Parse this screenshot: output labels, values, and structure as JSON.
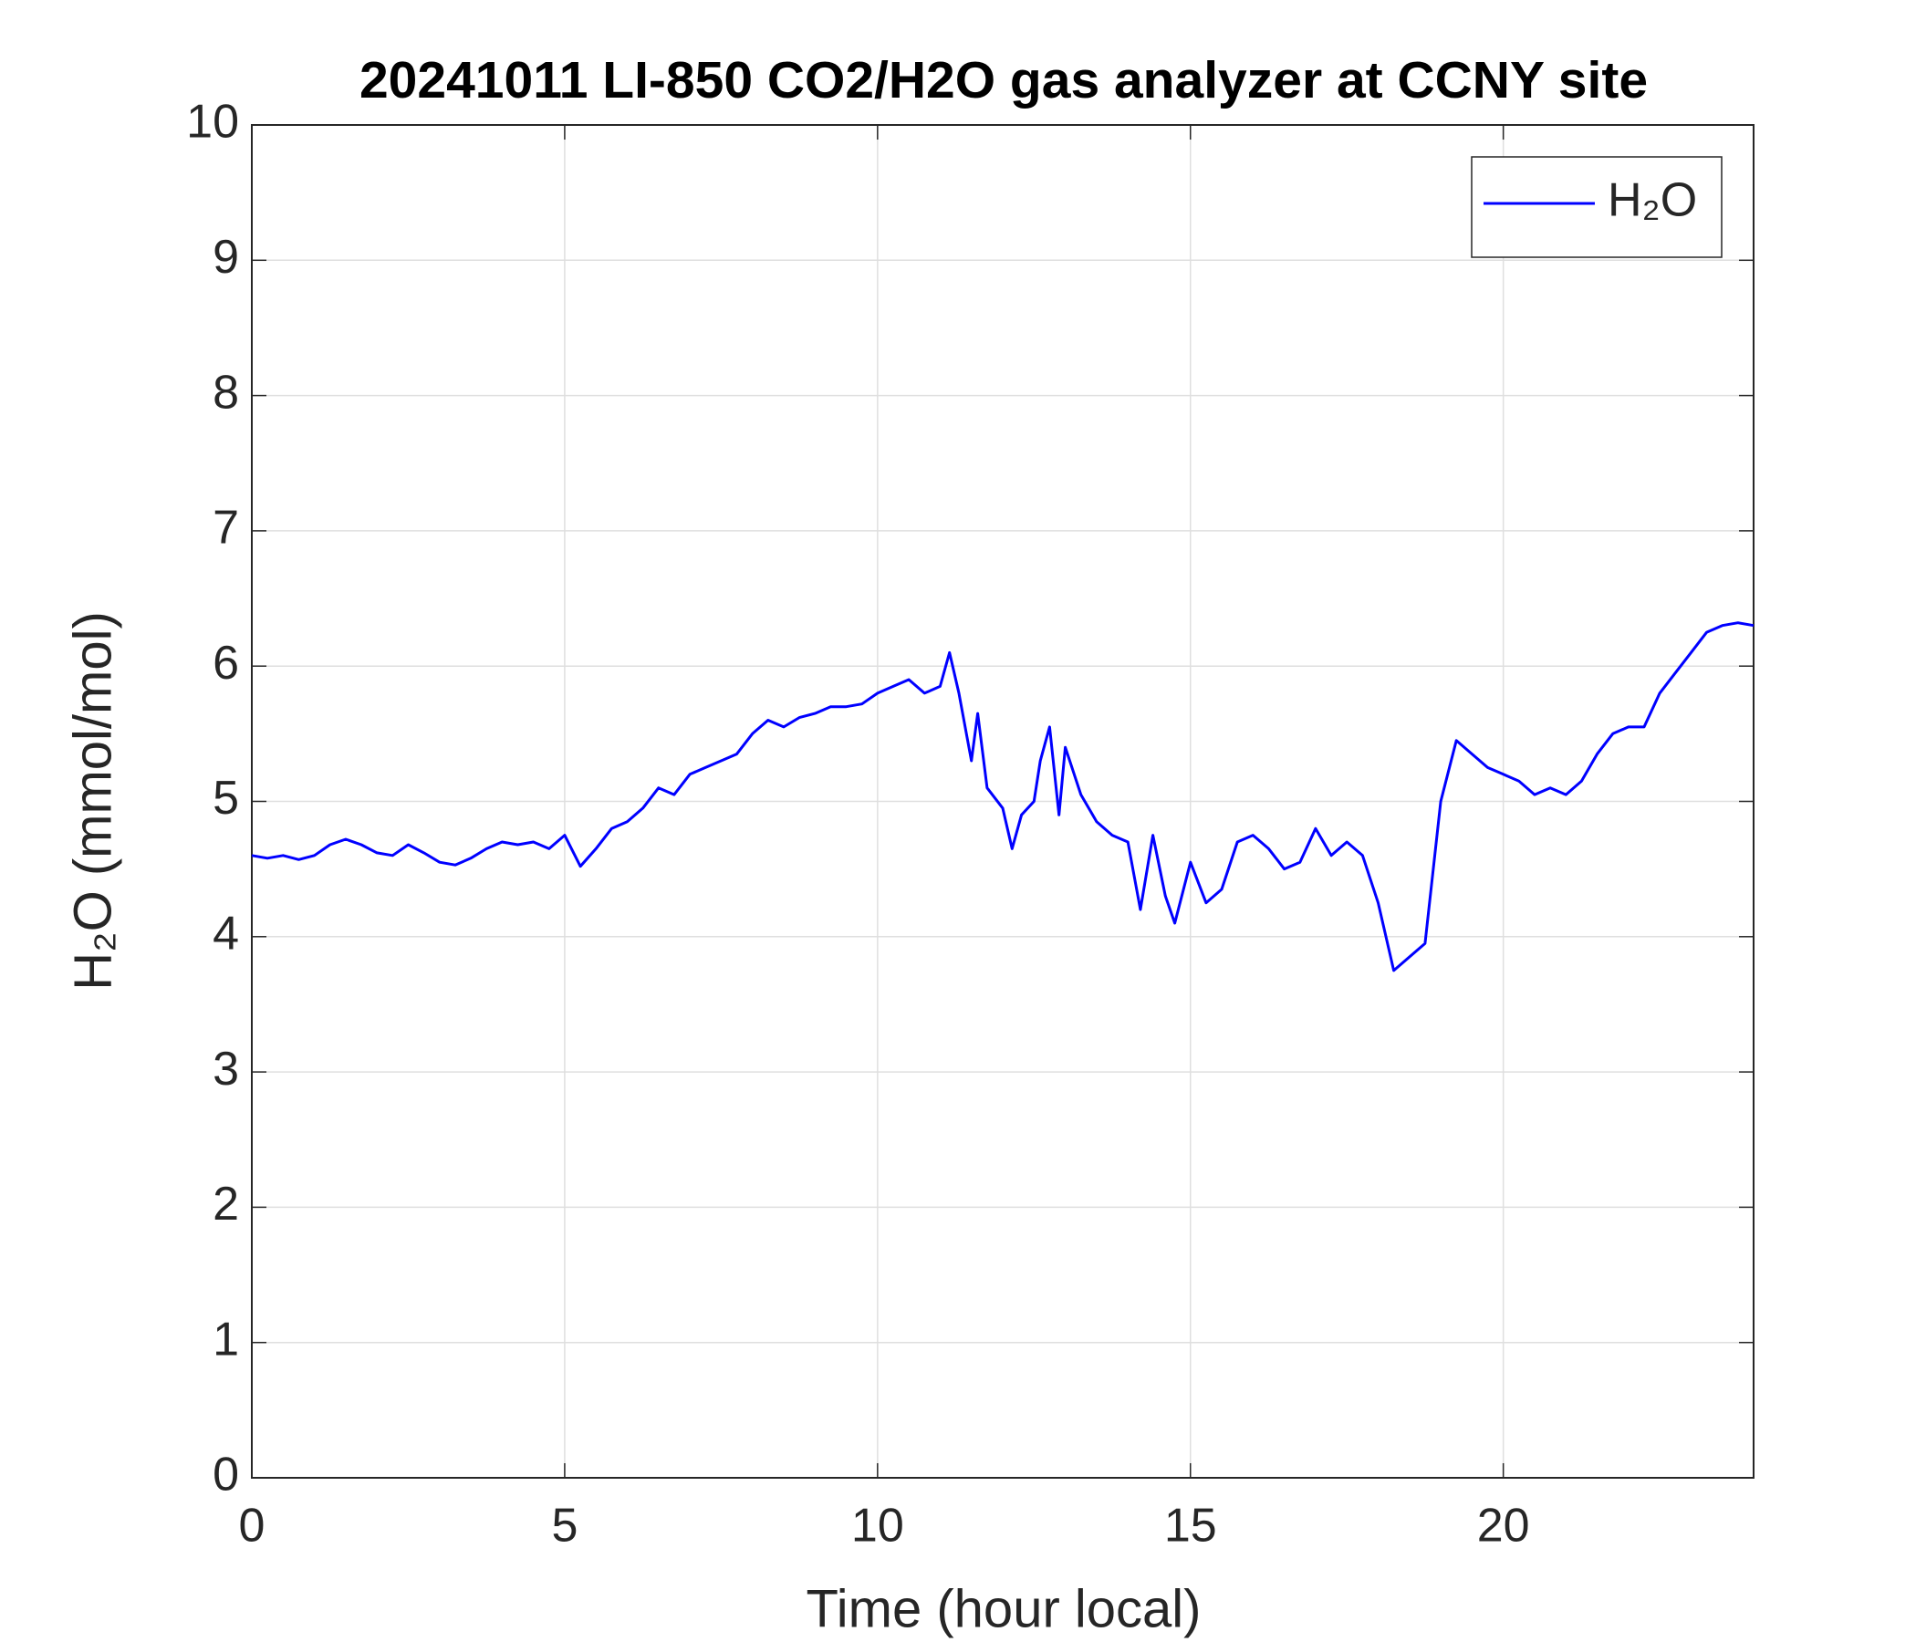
{
  "chart_data": {
    "type": "line",
    "title": "20241011 LI-850 CO2/H2O gas analyzer at CCNY site",
    "x_label": "Time (hour local)",
    "y_label": "H₂O (mmol/mol)",
    "x": [
      0,
      0.25,
      0.5,
      0.75,
      1,
      1.25,
      1.5,
      1.75,
      2,
      2.25,
      2.5,
      2.75,
      3,
      3.25,
      3.5,
      3.75,
      4,
      4.25,
      4.5,
      4.75,
      5,
      5.25,
      5.5,
      5.75,
      6,
      6.25,
      6.5,
      6.75,
      7,
      7.25,
      7.5,
      7.75,
      8,
      8.25,
      8.5,
      8.75,
      9,
      9.25,
      9.5,
      9.75,
      10,
      10.25,
      10.5,
      10.75,
      11,
      11.15,
      11.3,
      11.5,
      11.6,
      11.75,
      12,
      12.15,
      12.3,
      12.5,
      12.6,
      12.75,
      12.9,
      13,
      13.25,
      13.5,
      13.75,
      14,
      14.2,
      14.4,
      14.6,
      14.75,
      15,
      15.25,
      15.5,
      15.75,
      16,
      16.25,
      16.5,
      16.75,
      17,
      17.25,
      17.5,
      17.75,
      18,
      18.25,
      18.5,
      18.75,
      19,
      19.25,
      19.5,
      19.75,
      20,
      20.25,
      20.5,
      20.75,
      21,
      21.25,
      21.5,
      21.75,
      22,
      22.25,
      22.5,
      22.75,
      23,
      23.25,
      23.5,
      23.75,
      24
    ],
    "series": [
      {
        "name": "H₂O",
        "color": "#0000ff",
        "values": [
          4.6,
          4.58,
          4.6,
          4.57,
          4.6,
          4.68,
          4.72,
          4.68,
          4.62,
          4.6,
          4.68,
          4.62,
          4.55,
          4.53,
          4.58,
          4.65,
          4.7,
          4.68,
          4.7,
          4.65,
          4.75,
          4.52,
          4.65,
          4.8,
          4.85,
          4.95,
          5.1,
          5.05,
          5.2,
          5.25,
          5.3,
          5.35,
          5.5,
          5.6,
          5.55,
          5.62,
          5.65,
          5.7,
          5.7,
          5.72,
          5.8,
          5.85,
          5.9,
          5.8,
          5.85,
          6.1,
          5.8,
          5.3,
          5.65,
          5.1,
          4.95,
          4.65,
          4.9,
          5.0,
          5.3,
          5.55,
          4.9,
          5.4,
          5.05,
          4.85,
          4.75,
          4.7,
          4.2,
          4.75,
          4.3,
          4.1,
          4.55,
          4.25,
          4.35,
          4.7,
          4.75,
          4.65,
          4.5,
          4.55,
          4.8,
          4.6,
          4.7,
          4.6,
          4.25,
          3.75,
          3.85,
          3.95,
          5.0,
          5.45,
          5.35,
          5.25,
          5.2,
          5.15,
          5.05,
          5.1,
          5.05,
          5.15,
          5.35,
          5.5,
          5.55,
          5.55,
          5.8,
          5.95,
          6.1,
          6.25,
          6.3,
          6.32,
          6.3
        ]
      }
    ],
    "xlim": [
      0,
      24
    ],
    "xticks": [
      0,
      5,
      10,
      15,
      20
    ],
    "ylim": [
      0,
      10
    ],
    "yticks": [
      0,
      1,
      2,
      3,
      4,
      5,
      6,
      7,
      8,
      9,
      10
    ],
    "grid": true,
    "legend": "upper right"
  }
}
